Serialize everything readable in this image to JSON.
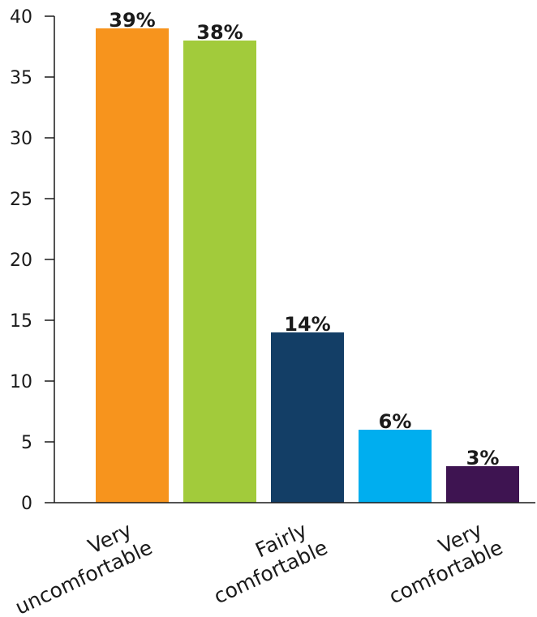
{
  "chart_data": {
    "type": "bar",
    "categories": [
      "Very uncomfortable",
      "",
      "Fairly comfortable",
      "",
      "Very comfortable"
    ],
    "category_label_lines": [
      [
        "Very",
        "uncomfortable"
      ],
      [],
      [
        "Fairly",
        "comfortable"
      ],
      [],
      [
        "Very",
        "comfortable"
      ]
    ],
    "values": [
      39,
      38,
      14,
      6,
      3
    ],
    "value_labels": [
      "39%",
      "38%",
      "14%",
      "6%",
      "3%"
    ],
    "bar_colors": [
      "#f7941d",
      "#a2cb3b",
      "#133e66",
      "#00aeef",
      "#3e1451"
    ],
    "title": "",
    "xlabel": "",
    "ylabel": "",
    "ylim": [
      0,
      40
    ],
    "yticks": [
      0,
      5,
      10,
      15,
      20,
      25,
      30,
      35,
      40
    ],
    "grid": false,
    "legend": "none"
  }
}
